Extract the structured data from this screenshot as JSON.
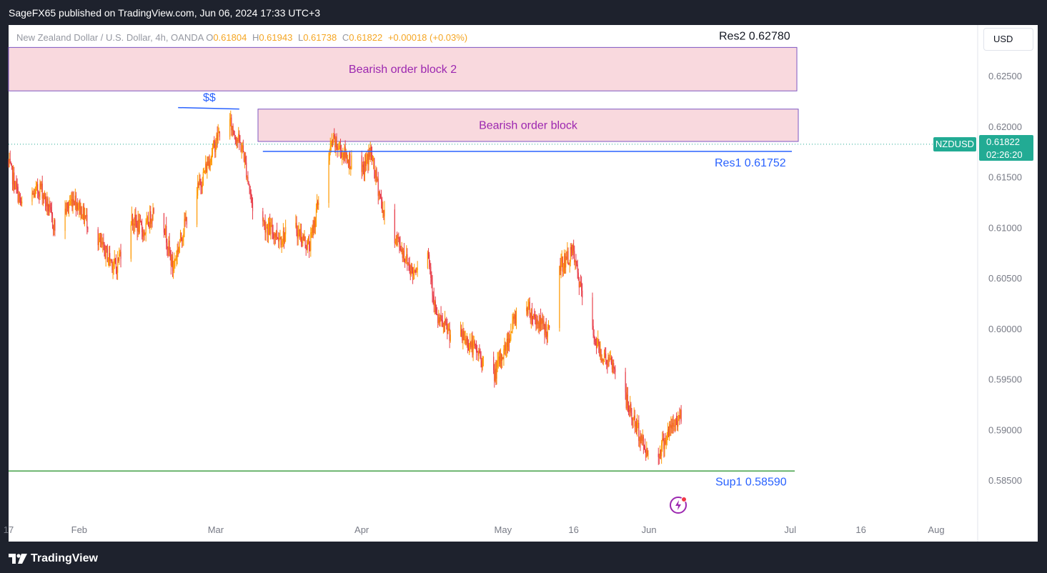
{
  "header": {
    "publisher_text": "SageFX65 published on TradingView.com, Jun 06, 2024 17:33 UTC+3"
  },
  "legend": {
    "instrument": "New Zealand Dollar / U.S. Dollar, 4h, OANDA",
    "open_label": "O",
    "open": "0.61804",
    "high_label": "H",
    "high": "0.61943",
    "low_label": "L",
    "low": "0.61738",
    "close_label": "C",
    "close": "0.61822",
    "change": "+0.00018 (+0.03%)"
  },
  "currency_button": "USD",
  "last_price": {
    "symbol": "NZDUSD",
    "price": "0.61822",
    "countdown": "02:26:20"
  },
  "footer": {
    "brand": "TradingView"
  },
  "colors": {
    "candle_up": "#ff9800",
    "candle_down": "#e8404c",
    "block_fill": "#f9d9de",
    "block_border": "#7e57c2",
    "block_label": "#9c27b0",
    "res_line": "#2962ff",
    "sup_line": "#43a047",
    "price_tag": "#22ab94",
    "axis_text": "#787b86"
  },
  "chart_data": {
    "type": "candlestick",
    "symbol": "NZDUSD",
    "timeframe": "4h",
    "x_start": "2024-01-17",
    "x_ticks": [
      "17",
      "Feb",
      "Mar",
      "Apr",
      "May",
      "16",
      "Jun",
      "Jul",
      "16",
      "Aug"
    ],
    "x_tick_dates": [
      "2024-01-17",
      "2024-02-01",
      "2024-03-01",
      "2024-04-01",
      "2024-05-01",
      "2024-05-16",
      "2024-06-01",
      "2024-07-01",
      "2024-07-16",
      "2024-08-01"
    ],
    "y_ticks": [
      "0.62500",
      "0.62000",
      "0.61500",
      "0.61000",
      "0.60500",
      "0.60000",
      "0.59500",
      "0.59000",
      "0.58500"
    ],
    "ylim": [
      0.5805,
      0.632
    ],
    "series": [
      {
        "name": "NZDUSD",
        "points": [
          {
            "date": "2024-01-17",
            "value": 0.6165
          },
          {
            "date": "2024-01-20",
            "value": 0.612
          },
          {
            "date": "2024-01-24",
            "value": 0.614
          },
          {
            "date": "2024-01-27",
            "value": 0.61
          },
          {
            "date": "2024-01-31",
            "value": 0.613
          },
          {
            "date": "2024-02-03",
            "value": 0.6105
          },
          {
            "date": "2024-02-06",
            "value": 0.608
          },
          {
            "date": "2024-02-09",
            "value": 0.606
          },
          {
            "date": "2024-02-12",
            "value": 0.611
          },
          {
            "date": "2024-02-15",
            "value": 0.6095
          },
          {
            "date": "2024-02-18",
            "value": 0.613
          },
          {
            "date": "2024-02-21",
            "value": 0.606
          },
          {
            "date": "2024-02-24",
            "value": 0.611
          },
          {
            "date": "2024-02-27",
            "value": 0.6145
          },
          {
            "date": "2024-03-02",
            "value": 0.6195
          },
          {
            "date": "2024-03-04",
            "value": 0.6205
          },
          {
            "date": "2024-03-07",
            "value": 0.6175
          },
          {
            "date": "2024-03-09",
            "value": 0.612
          },
          {
            "date": "2024-03-12",
            "value": 0.61
          },
          {
            "date": "2024-03-15",
            "value": 0.609
          },
          {
            "date": "2024-03-18",
            "value": 0.61
          },
          {
            "date": "2024-03-21",
            "value": 0.608
          },
          {
            "date": "2024-03-24",
            "value": 0.615
          },
          {
            "date": "2024-03-26",
            "value": 0.6185
          },
          {
            "date": "2024-03-29",
            "value": 0.617
          },
          {
            "date": "2024-04-01",
            "value": 0.615
          },
          {
            "date": "2024-04-03",
            "value": 0.6175
          },
          {
            "date": "2024-04-06",
            "value": 0.611
          },
          {
            "date": "2024-04-09",
            "value": 0.6085
          },
          {
            "date": "2024-04-12",
            "value": 0.6055
          },
          {
            "date": "2024-04-15",
            "value": 0.6085
          },
          {
            "date": "2024-04-17",
            "value": 0.601
          },
          {
            "date": "2024-04-20",
            "value": 0.5995
          },
          {
            "date": "2024-04-23",
            "value": 0.599
          },
          {
            "date": "2024-04-26",
            "value": 0.5975
          },
          {
            "date": "2024-04-29",
            "value": 0.595
          },
          {
            "date": "2024-05-02",
            "value": 0.5985
          },
          {
            "date": "2024-05-05",
            "value": 0.603
          },
          {
            "date": "2024-05-08",
            "value": 0.601
          },
          {
            "date": "2024-05-11",
            "value": 0.5995
          },
          {
            "date": "2024-05-13",
            "value": 0.606
          },
          {
            "date": "2024-05-16",
            "value": 0.6075
          },
          {
            "date": "2024-05-19",
            "value": 0.601
          },
          {
            "date": "2024-05-22",
            "value": 0.5975
          },
          {
            "date": "2024-05-25",
            "value": 0.596
          },
          {
            "date": "2024-05-28",
            "value": 0.592
          },
          {
            "date": "2024-05-31",
            "value": 0.5885
          },
          {
            "date": "2024-06-02",
            "value": 0.5865
          },
          {
            "date": "2024-06-05",
            "value": 0.5895
          },
          {
            "date": "2024-06-08",
            "value": 0.5915
          }
        ]
      }
    ],
    "levels": [
      {
        "label": "Res2 0.62780",
        "value": 0.6278
      },
      {
        "label": "Res1 0.61752",
        "value": 0.61752
      },
      {
        "label": "Sup1 0.58590",
        "value": 0.5859
      }
    ],
    "zones": [
      {
        "label": "Bearish order block 2",
        "from": 0.6235,
        "to": 0.6278
      },
      {
        "label": "Bearish order block",
        "from": 0.6185,
        "to": 0.6217
      }
    ],
    "annotations": [
      {
        "label": "$$"
      }
    ],
    "grid": false
  }
}
